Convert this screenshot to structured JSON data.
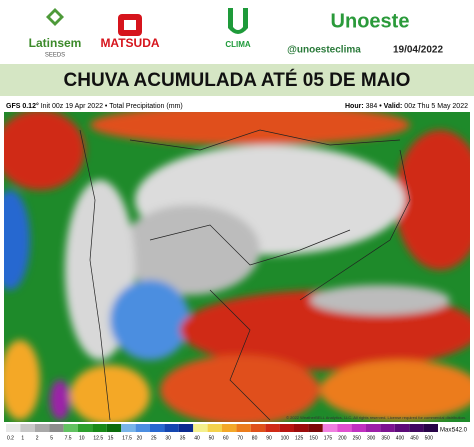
{
  "header": {
    "brand1": "Latinsem",
    "brand1_sub": "SEEDS",
    "brand2": "MATSUDA",
    "brand3": "CLIMA",
    "brand4": "Unoeste",
    "handle": "@unoesteclima",
    "date": "19/04/2022"
  },
  "title": "CHUVA ACUMULADA ATÉ 05 DE MAIO",
  "map": {
    "model": "GFS 0.12°",
    "info": "Init 00z 19 Apr 2022 • Total Precipitation (mm)",
    "hour_label": "Hour:",
    "hour": "384",
    "valid_label": "• Valid:",
    "valid": "00z Thu 5 May 2022",
    "copyright": "© 2022 WeatherBELL Analytics, LLC. All rights reserved. License required for commercial distribution.",
    "max_label": "Max:",
    "max": "542.0"
  },
  "colorbar": {
    "values": [
      0.2,
      1,
      2,
      5,
      7.5,
      10,
      12.5,
      15,
      17.5,
      20,
      25,
      30,
      35,
      40,
      50,
      60,
      70,
      80,
      90,
      100,
      125,
      150,
      175,
      200,
      250,
      300,
      350,
      400,
      450,
      500
    ],
    "colors": [
      "#e8e8e8",
      "#c8c8c8",
      "#a8a8a8",
      "#8c8c8c",
      "#62c262",
      "#2ea02e",
      "#188a18",
      "#0c6c0c",
      "#78b4e8",
      "#4c8ee0",
      "#2868d0",
      "#1446b0",
      "#0a2a90",
      "#f4f08c",
      "#f4d24c",
      "#f4a828",
      "#ec7c1c",
      "#e0501a",
      "#d02a16",
      "#b81410",
      "#9c0c0c",
      "#7c0808",
      "#f080e0",
      "#e050d0",
      "#c030c0",
      "#9c20a8",
      "#7c1490",
      "#5c0c78",
      "#400860",
      "#280448"
    ]
  }
}
